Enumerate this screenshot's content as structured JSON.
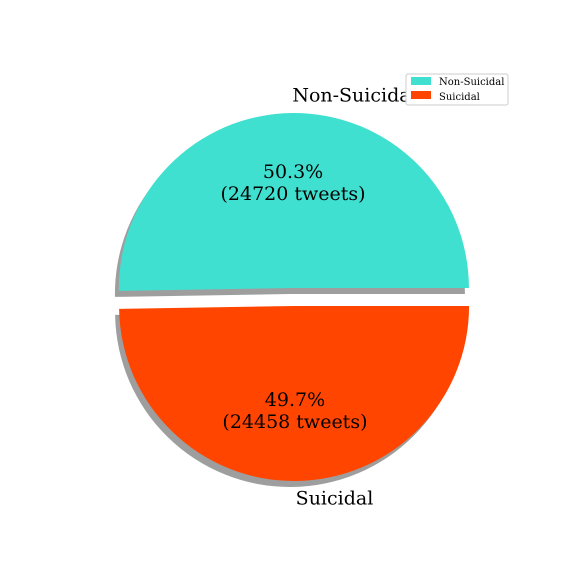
{
  "chart_data": {
    "type": "pie",
    "title": "",
    "slices": [
      {
        "label": "Non-Suicidal",
        "value": 24720,
        "percent_label": "50.3%",
        "count_label": "(24720 tweets)",
        "color": "#40E0D0"
      },
      {
        "label": "Suicidal",
        "value": 24458,
        "percent_label": "49.7%",
        "count_label": "(24458 tweets)",
        "color": "#FF4500"
      }
    ],
    "exploded": true,
    "shadow": true,
    "legend": {
      "placement": "top-right",
      "entries": [
        "Non-Suicidal",
        "Suicidal"
      ]
    }
  }
}
